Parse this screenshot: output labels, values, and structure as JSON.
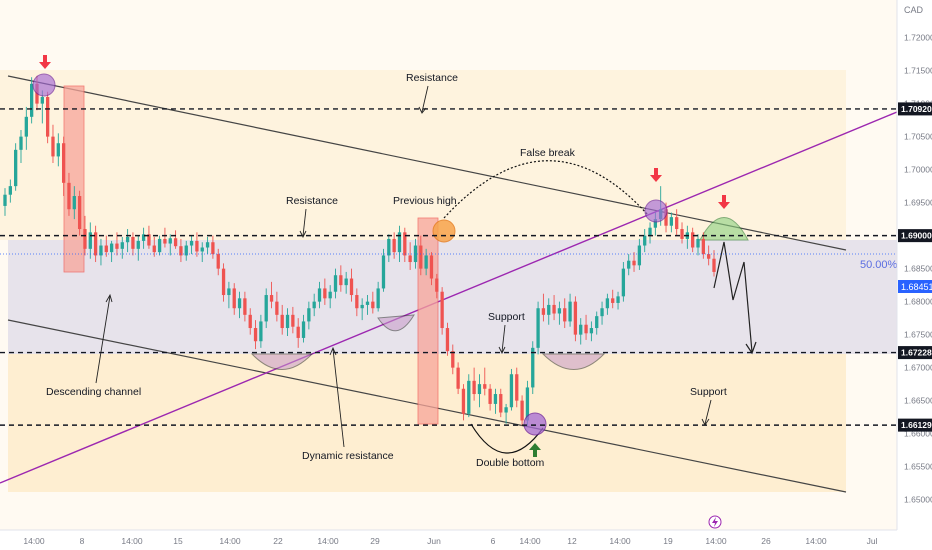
{
  "chart_data": {
    "type": "candlestick",
    "currency": "CAD",
    "colors": {
      "up": "#26a69a",
      "down": "#ef5350",
      "trendline": "#9c27b0",
      "channel": "#444444",
      "price_line": "#2962ff",
      "arrow_down": "#f23645",
      "arrow_up": "#2e7d32"
    },
    "ylim": [
      1.6454,
      1.7257
    ],
    "y_ticks": [
      "1.72000",
      "1.71500",
      "1.71000",
      "1.70500",
      "1.70000",
      "1.69500",
      "1.69000",
      "1.68500",
      "1.68000",
      "1.67500",
      "1.67000",
      "1.66500",
      "1.66000",
      "1.65500",
      "1.65000"
    ],
    "x_ticks": [
      "14:00",
      "8",
      "14:00",
      "15",
      "14:00",
      "22",
      "14:00",
      "29",
      "Jun",
      "6",
      "14:00",
      "12",
      "14:00",
      "19",
      "14:00",
      "26",
      "14:00",
      "Jul"
    ],
    "levels": [
      {
        "price": "1.70920",
        "style": "dashed"
      },
      {
        "price": "1.69000",
        "style": "dashed"
      },
      {
        "price": "1.67228",
        "style": "dashed"
      },
      {
        "price": "1.66129",
        "style": "dashed"
      }
    ],
    "last_price": "1.68451",
    "fib_label": "50.00%",
    "candles": [
      {
        "o": 1.6945,
        "h": 1.6972,
        "l": 1.693,
        "c": 1.6962
      },
      {
        "o": 1.6962,
        "h": 1.6985,
        "l": 1.695,
        "c": 1.6975
      },
      {
        "o": 1.6975,
        "h": 1.704,
        "l": 1.6968,
        "c": 1.703
      },
      {
        "o": 1.703,
        "h": 1.706,
        "l": 1.701,
        "c": 1.705
      },
      {
        "o": 1.705,
        "h": 1.7095,
        "l": 1.703,
        "c": 1.708
      },
      {
        "o": 1.708,
        "h": 1.714,
        "l": 1.707,
        "c": 1.713
      },
      {
        "o": 1.713,
        "h": 1.7142,
        "l": 1.709,
        "c": 1.71
      },
      {
        "o": 1.71,
        "h": 1.712,
        "l": 1.707,
        "c": 1.711
      },
      {
        "o": 1.711,
        "h": 1.7118,
        "l": 1.704,
        "c": 1.705
      },
      {
        "o": 1.705,
        "h": 1.7068,
        "l": 1.701,
        "c": 1.702
      },
      {
        "o": 1.702,
        "h": 1.7055,
        "l": 1.7005,
        "c": 1.704
      },
      {
        "o": 1.704,
        "h": 1.705,
        "l": 1.696,
        "c": 1.698
      },
      {
        "o": 1.698,
        "h": 1.6995,
        "l": 1.693,
        "c": 1.694
      },
      {
        "o": 1.694,
        "h": 1.6975,
        "l": 1.6925,
        "c": 1.696
      },
      {
        "o": 1.696,
        "h": 1.6968,
        "l": 1.69,
        "c": 1.691
      },
      {
        "o": 1.691,
        "h": 1.693,
        "l": 1.687,
        "c": 1.688
      },
      {
        "o": 1.688,
        "h": 1.692,
        "l": 1.6865,
        "c": 1.6905
      },
      {
        "o": 1.6905,
        "h": 1.6915,
        "l": 1.686,
        "c": 1.687
      },
      {
        "o": 1.687,
        "h": 1.6895,
        "l": 1.6855,
        "c": 1.6885
      },
      {
        "o": 1.6885,
        "h": 1.69,
        "l": 1.6868,
        "c": 1.6875
      },
      {
        "o": 1.6875,
        "h": 1.6892,
        "l": 1.686,
        "c": 1.6888
      },
      {
        "o": 1.6888,
        "h": 1.6905,
        "l": 1.687,
        "c": 1.688
      },
      {
        "o": 1.688,
        "h": 1.6898,
        "l": 1.6865,
        "c": 1.689
      },
      {
        "o": 1.689,
        "h": 1.691,
        "l": 1.6875,
        "c": 1.6898
      },
      {
        "o": 1.6898,
        "h": 1.6905,
        "l": 1.687,
        "c": 1.688
      },
      {
        "o": 1.688,
        "h": 1.69,
        "l": 1.6862,
        "c": 1.6892
      },
      {
        "o": 1.6892,
        "h": 1.6912,
        "l": 1.688,
        "c": 1.6902
      },
      {
        "o": 1.6902,
        "h": 1.6915,
        "l": 1.688,
        "c": 1.6885
      },
      {
        "o": 1.6885,
        "h": 1.6898,
        "l": 1.6868,
        "c": 1.6875
      },
      {
        "o": 1.6875,
        "h": 1.69,
        "l": 1.687,
        "c": 1.6895
      },
      {
        "o": 1.6895,
        "h": 1.6912,
        "l": 1.6882,
        "c": 1.6888
      },
      {
        "o": 1.6888,
        "h": 1.6902,
        "l": 1.687,
        "c": 1.6896
      },
      {
        "o": 1.6896,
        "h": 1.6908,
        "l": 1.688,
        "c": 1.6884
      },
      {
        "o": 1.6884,
        "h": 1.6895,
        "l": 1.686,
        "c": 1.687
      },
      {
        "o": 1.687,
        "h": 1.6892,
        "l": 1.6862,
        "c": 1.6885
      },
      {
        "o": 1.6885,
        "h": 1.69,
        "l": 1.6872,
        "c": 1.6892
      },
      {
        "o": 1.6892,
        "h": 1.6905,
        "l": 1.6868,
        "c": 1.6876
      },
      {
        "o": 1.6876,
        "h": 1.689,
        "l": 1.686,
        "c": 1.6882
      },
      {
        "o": 1.6882,
        "h": 1.6898,
        "l": 1.6872,
        "c": 1.689
      },
      {
        "o": 1.689,
        "h": 1.69,
        "l": 1.6865,
        "c": 1.6872
      },
      {
        "o": 1.6872,
        "h": 1.688,
        "l": 1.684,
        "c": 1.685
      },
      {
        "o": 1.685,
        "h": 1.6858,
        "l": 1.68,
        "c": 1.681
      },
      {
        "o": 1.681,
        "h": 1.683,
        "l": 1.679,
        "c": 1.682
      },
      {
        "o": 1.682,
        "h": 1.6828,
        "l": 1.678,
        "c": 1.679
      },
      {
        "o": 1.679,
        "h": 1.6815,
        "l": 1.6775,
        "c": 1.6805
      },
      {
        "o": 1.6805,
        "h": 1.6815,
        "l": 1.677,
        "c": 1.678
      },
      {
        "o": 1.678,
        "h": 1.679,
        "l": 1.675,
        "c": 1.676
      },
      {
        "o": 1.676,
        "h": 1.6772,
        "l": 1.6728,
        "c": 1.674
      },
      {
        "o": 1.674,
        "h": 1.678,
        "l": 1.673,
        "c": 1.677
      },
      {
        "o": 1.677,
        "h": 1.682,
        "l": 1.676,
        "c": 1.681
      },
      {
        "o": 1.681,
        "h": 1.683,
        "l": 1.679,
        "c": 1.68
      },
      {
        "o": 1.68,
        "h": 1.6815,
        "l": 1.677,
        "c": 1.678
      },
      {
        "o": 1.678,
        "h": 1.6795,
        "l": 1.675,
        "c": 1.676
      },
      {
        "o": 1.676,
        "h": 1.679,
        "l": 1.6748,
        "c": 1.678
      },
      {
        "o": 1.678,
        "h": 1.6792,
        "l": 1.6752,
        "c": 1.6762
      },
      {
        "o": 1.6762,
        "h": 1.6775,
        "l": 1.673,
        "c": 1.6745
      },
      {
        "o": 1.6745,
        "h": 1.678,
        "l": 1.6738,
        "c": 1.677
      },
      {
        "o": 1.677,
        "h": 1.68,
        "l": 1.6758,
        "c": 1.679
      },
      {
        "o": 1.679,
        "h": 1.6812,
        "l": 1.6778,
        "c": 1.68
      },
      {
        "o": 1.68,
        "h": 1.683,
        "l": 1.679,
        "c": 1.682
      },
      {
        "o": 1.682,
        "h": 1.6835,
        "l": 1.6795,
        "c": 1.6805
      },
      {
        "o": 1.6805,
        "h": 1.6825,
        "l": 1.679,
        "c": 1.6815
      },
      {
        "o": 1.6815,
        "h": 1.685,
        "l": 1.6805,
        "c": 1.684
      },
      {
        "o": 1.684,
        "h": 1.6855,
        "l": 1.6815,
        "c": 1.6825
      },
      {
        "o": 1.6825,
        "h": 1.6845,
        "l": 1.6812,
        "c": 1.6835
      },
      {
        "o": 1.6835,
        "h": 1.685,
        "l": 1.68,
        "c": 1.681
      },
      {
        "o": 1.681,
        "h": 1.682,
        "l": 1.6778,
        "c": 1.679
      },
      {
        "o": 1.679,
        "h": 1.6805,
        "l": 1.6772,
        "c": 1.6795
      },
      {
        "o": 1.6795,
        "h": 1.681,
        "l": 1.678,
        "c": 1.68
      },
      {
        "o": 1.68,
        "h": 1.6815,
        "l": 1.6782,
        "c": 1.679
      },
      {
        "o": 1.679,
        "h": 1.683,
        "l": 1.6785,
        "c": 1.682
      },
      {
        "o": 1.682,
        "h": 1.688,
        "l": 1.6815,
        "c": 1.687
      },
      {
        "o": 1.687,
        "h": 1.6902,
        "l": 1.686,
        "c": 1.6895
      },
      {
        "o": 1.6895,
        "h": 1.6905,
        "l": 1.6865,
        "c": 1.6875
      },
      {
        "o": 1.6875,
        "h": 1.6915,
        "l": 1.686,
        "c": 1.6905
      },
      {
        "o": 1.6905,
        "h": 1.6912,
        "l": 1.686,
        "c": 1.687
      },
      {
        "o": 1.687,
        "h": 1.689,
        "l": 1.6848,
        "c": 1.686
      },
      {
        "o": 1.686,
        "h": 1.6895,
        "l": 1.685,
        "c": 1.6885
      },
      {
        "o": 1.6885,
        "h": 1.69,
        "l": 1.684,
        "c": 1.685
      },
      {
        "o": 1.685,
        "h": 1.688,
        "l": 1.684,
        "c": 1.687
      },
      {
        "o": 1.687,
        "h": 1.6875,
        "l": 1.6825,
        "c": 1.6835
      },
      {
        "o": 1.6835,
        "h": 1.6842,
        "l": 1.6805,
        "c": 1.6815
      },
      {
        "o": 1.6815,
        "h": 1.6822,
        "l": 1.675,
        "c": 1.676
      },
      {
        "o": 1.676,
        "h": 1.6768,
        "l": 1.6718,
        "c": 1.6725
      },
      {
        "o": 1.6725,
        "h": 1.6735,
        "l": 1.669,
        "c": 1.67
      },
      {
        "o": 1.67,
        "h": 1.6708,
        "l": 1.666,
        "c": 1.6668
      },
      {
        "o": 1.6668,
        "h": 1.6675,
        "l": 1.662,
        "c": 1.663
      },
      {
        "o": 1.663,
        "h": 1.669,
        "l": 1.6625,
        "c": 1.668
      },
      {
        "o": 1.668,
        "h": 1.67,
        "l": 1.665,
        "c": 1.666
      },
      {
        "o": 1.666,
        "h": 1.669,
        "l": 1.664,
        "c": 1.6675
      },
      {
        "o": 1.6675,
        "h": 1.67,
        "l": 1.6658,
        "c": 1.6668
      },
      {
        "o": 1.6668,
        "h": 1.6675,
        "l": 1.6635,
        "c": 1.6645
      },
      {
        "o": 1.6645,
        "h": 1.6668,
        "l": 1.663,
        "c": 1.666
      },
      {
        "o": 1.666,
        "h": 1.6668,
        "l": 1.6625,
        "c": 1.6632
      },
      {
        "o": 1.6632,
        "h": 1.6645,
        "l": 1.6615,
        "c": 1.664
      },
      {
        "o": 1.664,
        "h": 1.6698,
        "l": 1.6635,
        "c": 1.669
      },
      {
        "o": 1.669,
        "h": 1.67,
        "l": 1.664,
        "c": 1.665
      },
      {
        "o": 1.665,
        "h": 1.6658,
        "l": 1.6612,
        "c": 1.662
      },
      {
        "o": 1.662,
        "h": 1.668,
        "l": 1.6612,
        "c": 1.667
      },
      {
        "o": 1.667,
        "h": 1.674,
        "l": 1.666,
        "c": 1.673
      },
      {
        "o": 1.673,
        "h": 1.68,
        "l": 1.672,
        "c": 1.679
      },
      {
        "o": 1.679,
        "h": 1.6812,
        "l": 1.677,
        "c": 1.678
      },
      {
        "o": 1.678,
        "h": 1.6805,
        "l": 1.6765,
        "c": 1.6795
      },
      {
        "o": 1.6795,
        "h": 1.681,
        "l": 1.6772,
        "c": 1.6782
      },
      {
        "o": 1.6782,
        "h": 1.68,
        "l": 1.6765,
        "c": 1.679
      },
      {
        "o": 1.679,
        "h": 1.6805,
        "l": 1.676,
        "c": 1.677
      },
      {
        "o": 1.677,
        "h": 1.6812,
        "l": 1.6762,
        "c": 1.68
      },
      {
        "o": 1.68,
        "h": 1.6808,
        "l": 1.674,
        "c": 1.675
      },
      {
        "o": 1.675,
        "h": 1.6775,
        "l": 1.6735,
        "c": 1.6765
      },
      {
        "o": 1.6765,
        "h": 1.678,
        "l": 1.6742,
        "c": 1.6752
      },
      {
        "o": 1.6752,
        "h": 1.677,
        "l": 1.674,
        "c": 1.676
      },
      {
        "o": 1.676,
        "h": 1.6785,
        "l": 1.675,
        "c": 1.6778
      },
      {
        "o": 1.6778,
        "h": 1.68,
        "l": 1.6765,
        "c": 1.679
      },
      {
        "o": 1.679,
        "h": 1.6812,
        "l": 1.678,
        "c": 1.6805
      },
      {
        "o": 1.6805,
        "h": 1.6818,
        "l": 1.679,
        "c": 1.6798
      },
      {
        "o": 1.6798,
        "h": 1.6815,
        "l": 1.6788,
        "c": 1.6808
      },
      {
        "o": 1.6808,
        "h": 1.686,
        "l": 1.68,
        "c": 1.685
      },
      {
        "o": 1.685,
        "h": 1.6872,
        "l": 1.684,
        "c": 1.6862
      },
      {
        "o": 1.6862,
        "h": 1.6875,
        "l": 1.6845,
        "c": 1.6855
      },
      {
        "o": 1.6855,
        "h": 1.6895,
        "l": 1.6848,
        "c": 1.6885
      },
      {
        "o": 1.6885,
        "h": 1.691,
        "l": 1.6875,
        "c": 1.69
      },
      {
        "o": 1.69,
        "h": 1.692,
        "l": 1.6888,
        "c": 1.6912
      },
      {
        "o": 1.6912,
        "h": 1.6935,
        "l": 1.69,
        "c": 1.6925
      },
      {
        "o": 1.6925,
        "h": 1.6975,
        "l": 1.6915,
        "c": 1.694
      },
      {
        "o": 1.694,
        "h": 1.695,
        "l": 1.6905,
        "c": 1.6915
      },
      {
        "o": 1.6915,
        "h": 1.6935,
        "l": 1.6905,
        "c": 1.6928
      },
      {
        "o": 1.6928,
        "h": 1.694,
        "l": 1.69,
        "c": 1.691
      },
      {
        "o": 1.691,
        "h": 1.692,
        "l": 1.6888,
        "c": 1.6895
      },
      {
        "o": 1.6895,
        "h": 1.6915,
        "l": 1.688,
        "c": 1.6905
      },
      {
        "o": 1.6905,
        "h": 1.6912,
        "l": 1.6875,
        "c": 1.6882
      },
      {
        "o": 1.6882,
        "h": 1.6902,
        "l": 1.687,
        "c": 1.6895
      },
      {
        "o": 1.6895,
        "h": 1.6905,
        "l": 1.6865,
        "c": 1.6872
      },
      {
        "o": 1.6872,
        "h": 1.6885,
        "l": 1.6855,
        "c": 1.6865
      },
      {
        "o": 1.6865,
        "h": 1.6878,
        "l": 1.6838,
        "c": 1.6845
      }
    ],
    "annotations": [
      "Resistance",
      "Resistance",
      "Previous high",
      "False break",
      "Support",
      "Support",
      "Descending channel",
      "Dynamic resistance",
      "Double bottom"
    ]
  },
  "axis": {
    "currency_label": "CAD"
  }
}
